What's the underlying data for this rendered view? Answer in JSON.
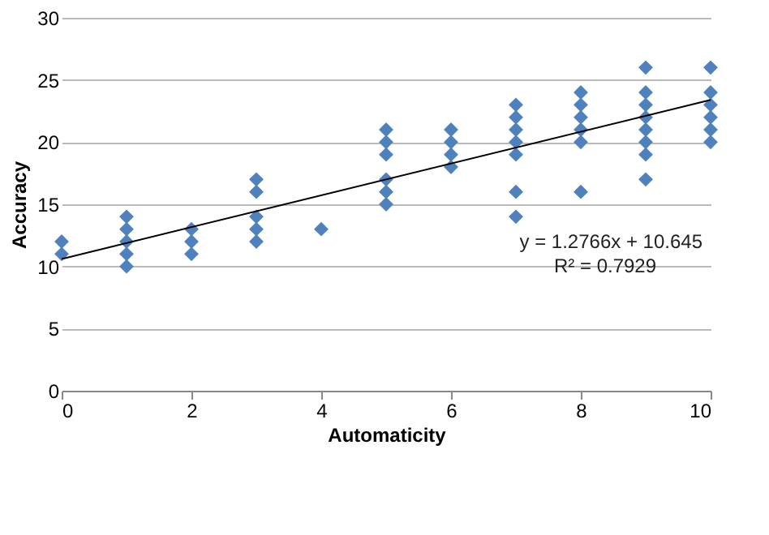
{
  "chart_data": {
    "type": "scatter",
    "xlabel": "Automaticity",
    "ylabel": "Accuracy",
    "xlim": [
      0,
      10
    ],
    "xticks": [
      0,
      2,
      4,
      6,
      8,
      10
    ],
    "ylim": [
      0,
      30
    ],
    "yticks": [
      0,
      5,
      10,
      15,
      20,
      25,
      30
    ],
    "grid": "y",
    "marker": "diamond",
    "series": [
      {
        "color": "#4f81bd",
        "x": [
          0,
          0,
          1,
          1,
          1,
          1,
          1,
          2,
          2,
          2,
          3,
          3,
          3,
          3,
          3,
          4,
          5,
          5,
          5,
          5,
          5,
          5,
          6,
          6,
          6,
          6,
          7,
          7,
          7,
          7,
          7,
          7,
          7,
          8,
          8,
          8,
          8,
          8,
          8,
          9,
          9,
          9,
          9,
          9,
          9,
          9,
          9,
          10,
          10,
          10,
          10,
          10,
          10
        ],
        "values": [
          11,
          12,
          10,
          11,
          12,
          13,
          14,
          11,
          12,
          13,
          12,
          13,
          14,
          16,
          17,
          13,
          15,
          16,
          17,
          19,
          20,
          21,
          18,
          19,
          20,
          21,
          14,
          16,
          19,
          20,
          21,
          22,
          23,
          16,
          20,
          21,
          22,
          23,
          24,
          17,
          19,
          20,
          21,
          22,
          23,
          24,
          26,
          20,
          21,
          22,
          23,
          24,
          26
        ]
      },
      {
        "type": "line",
        "marker": "none",
        "color": "#000000",
        "x": [
          0,
          10
        ],
        "values": [
          10.6,
          23.4
        ]
      }
    ],
    "annotations": [
      "y = 1.2766x + 10.645",
      "R² = 0.7929"
    ]
  }
}
